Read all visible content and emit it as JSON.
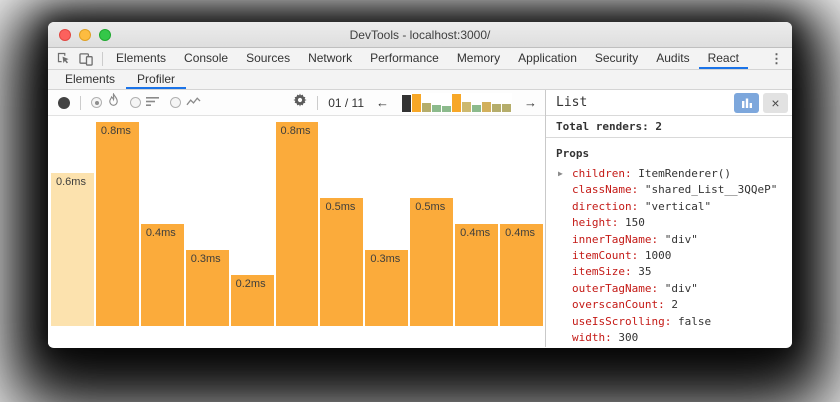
{
  "window": {
    "title": "DevTools - localhost:3000/"
  },
  "traffic_lights": [
    "close-button",
    "minimize-button",
    "zoom-button"
  ],
  "main_tabs": {
    "items": [
      "Elements",
      "Console",
      "Sources",
      "Network",
      "Performance",
      "Memory",
      "Application",
      "Security",
      "Audits",
      "React"
    ],
    "active": "React"
  },
  "sub_tabs": {
    "items": [
      "Elements",
      "Profiler"
    ],
    "active": "Profiler"
  },
  "profiler_toolbar": {
    "commit_position": "01 / 11",
    "prev_arrow": "←",
    "next_arrow": "→",
    "minichart": {
      "bars": [
        {
          "h": 0.95,
          "color": "#333333"
        },
        {
          "h": 1.0,
          "color": "#f7a727"
        },
        {
          "h": 0.5,
          "color": "#b5ad6b"
        },
        {
          "h": 0.38,
          "color": "#8cba8c"
        },
        {
          "h": 0.32,
          "color": "#8cba8c"
        },
        {
          "h": 1.0,
          "color": "#f7a727"
        },
        {
          "h": 0.55,
          "color": "#cdb96e"
        },
        {
          "h": 0.38,
          "color": "#8cba8c"
        },
        {
          "h": 0.58,
          "color": "#d2b05c"
        },
        {
          "h": 0.46,
          "color": "#b5ad6b"
        },
        {
          "h": 0.46,
          "color": "#b5ad6b"
        }
      ]
    }
  },
  "chart_data": {
    "type": "bar",
    "values_ms": [
      0.6,
      0.8,
      0.4,
      0.3,
      0.2,
      0.8,
      0.5,
      0.3,
      0.5,
      0.4,
      0.4
    ],
    "labels": [
      "0.6ms",
      "0.8ms",
      "0.4ms",
      "0.3ms",
      "0.2ms",
      "0.8ms",
      "0.5ms",
      "0.3ms",
      "0.5ms",
      "0.4ms",
      "0.4ms"
    ],
    "max_ms": 0.8,
    "ylim": [
      0,
      0.8
    ],
    "selected_index": 0,
    "bar_color": "#fbab3b",
    "selected_bar_color": "#fce2ae",
    "title": "",
    "xlabel": "",
    "ylabel": ""
  },
  "details_panel": {
    "title": "List",
    "total_renders_label": "Total renders:",
    "total_renders_value": "2",
    "props_header": "Props",
    "props": [
      {
        "key": "children",
        "value": "ItemRenderer()",
        "expandable": true
      },
      {
        "key": "className",
        "value": "\"shared_List__3QQeP\""
      },
      {
        "key": "direction",
        "value": "\"vertical\""
      },
      {
        "key": "height",
        "value": "150"
      },
      {
        "key": "innerTagName",
        "value": "\"div\""
      },
      {
        "key": "itemCount",
        "value": "1000"
      },
      {
        "key": "itemSize",
        "value": "35"
      },
      {
        "key": "outerTagName",
        "value": "\"div\""
      },
      {
        "key": "overscanCount",
        "value": "2"
      },
      {
        "key": "useIsScrolling",
        "value": "false"
      },
      {
        "key": "width",
        "value": "300"
      }
    ]
  },
  "icons": {
    "triangle": "▶",
    "close": "×",
    "menu_dots": "⋮",
    "left_arrow": "←",
    "right_arrow": "→"
  },
  "colors": {
    "accent_blue": "#1a73e8",
    "prop_key_red": "#c41a16",
    "prop_value_dark": "#333333",
    "bar_orange": "#fbab3b",
    "bar_selected_pale": "#fce2ae"
  }
}
